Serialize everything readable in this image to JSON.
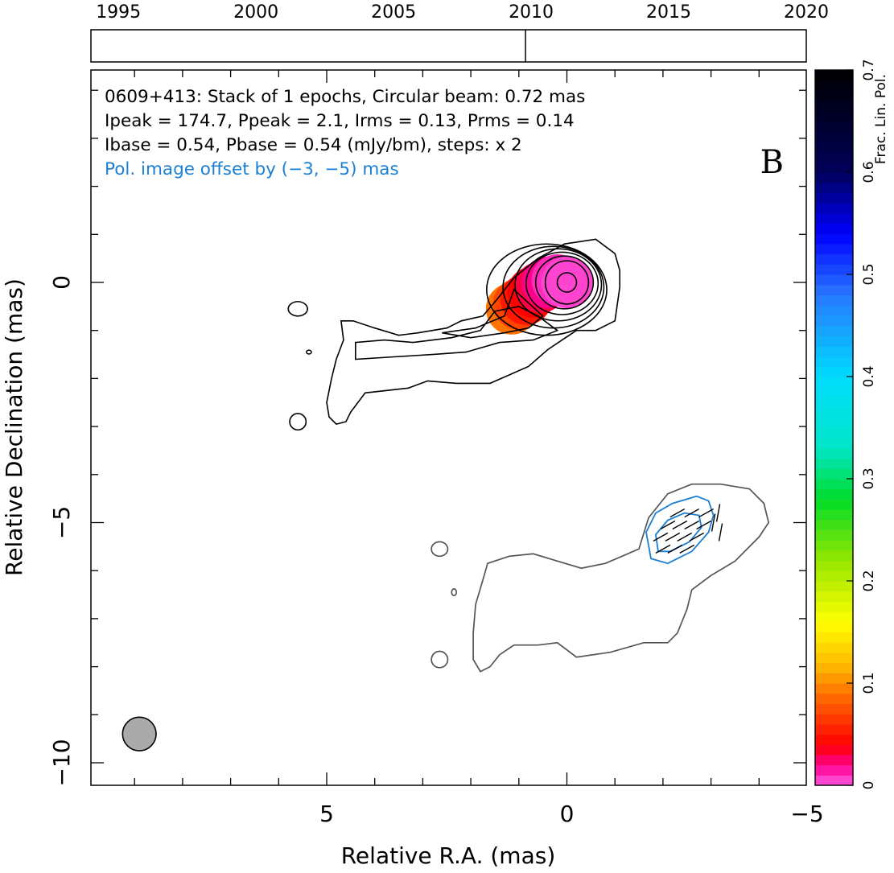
{
  "chart_data": {
    "type": "contour",
    "source": "0609+413",
    "panel_label": "B",
    "annotations": [
      "0609+413: Stack of 1 epochs, Circular beam: 0.72 mas",
      "Ipeak = 174.7, Ppeak = 2.1, Irms = 0.13, Prms = 0.14",
      "Ibase = 0.54, Pbase = 0.54 (mJy/bm), steps: x 2"
    ],
    "pol_offset_note": "Pol. image offset by (−3, −5) mas",
    "xlabel": "Relative R.A. (mas)",
    "ylabel": "Relative Declination (mas)",
    "xlim": [
      10,
      -5
    ],
    "ylim": [
      -10.5,
      4.4
    ],
    "x_ticks": [
      {
        "value": 5,
        "label": "5"
      },
      {
        "value": 0,
        "label": "0"
      },
      {
        "value": -5,
        "label": "−5"
      }
    ],
    "y_ticks": [
      {
        "value": 0,
        "label": "0"
      },
      {
        "value": -5,
        "label": "−5"
      },
      {
        "value": -10,
        "label": "−10"
      }
    ],
    "beam": {
      "ra": 8.9,
      "dec": -9.4,
      "diameter_mas": 0.72
    },
    "core_position": {
      "ra": 0,
      "dec": 0
    },
    "stokes_i_contours": {
      "color": "#000000",
      "outer": [
        [
          -1.1,
          -0.1
        ],
        [
          -1.0,
          -0.8
        ],
        [
          -0.6,
          -1.0
        ],
        [
          -0.2,
          -1.0
        ],
        [
          0.1,
          -1.2
        ],
        [
          0.4,
          -1.4
        ],
        [
          0.8,
          -1.75
        ],
        [
          1.6,
          -2.1
        ],
        [
          2.3,
          -2.1
        ],
        [
          2.9,
          -2.05
        ],
        [
          3.3,
          -2.2
        ],
        [
          4.2,
          -2.3
        ],
        [
          4.5,
          -2.7
        ],
        [
          4.6,
          -2.9
        ],
        [
          4.8,
          -2.95
        ],
        [
          4.95,
          -2.8
        ],
        [
          5.0,
          -2.5
        ],
        [
          4.9,
          -2.0
        ],
        [
          4.8,
          -1.6
        ],
        [
          4.65,
          -1.2
        ],
        [
          4.7,
          -0.8
        ],
        [
          4.45,
          -0.8
        ],
        [
          4.0,
          -0.95
        ],
        [
          3.5,
          -1.1
        ],
        [
          3.1,
          -1.05
        ],
        [
          2.5,
          -0.95
        ],
        [
          2.2,
          -0.8
        ],
        [
          1.75,
          -0.7
        ],
        [
          1.45,
          -0.35
        ],
        [
          1.1,
          0.1
        ],
        [
          0.6,
          0.5
        ],
        [
          0.05,
          0.8
        ],
        [
          -0.6,
          0.9
        ],
        [
          -1.0,
          0.6
        ],
        [
          -1.1,
          0.25
        ]
      ],
      "inner_levels": [
        {
          "rx": 0.45,
          "ry": 0.45,
          "cx": 0.0,
          "cy": 0.0
        },
        {
          "rx": 0.6,
          "ry": 0.55,
          "cx": 0.05,
          "cy": 0.0
        },
        {
          "rx": 0.75,
          "ry": 0.65,
          "cx": 0.1,
          "cy": -0.02
        },
        {
          "rx": 0.9,
          "ry": 0.75,
          "cx": 0.18,
          "cy": -0.05
        },
        {
          "rx": 1.05,
          "ry": 0.85,
          "cx": 0.28,
          "cy": -0.1
        },
        {
          "rx": 1.25,
          "ry": 0.95,
          "cx": 0.42,
          "cy": -0.15
        }
      ],
      "mid_level": [
        [
          1.5,
          -0.6
        ],
        [
          1.8,
          -1.0
        ],
        [
          2.4,
          -1.15
        ],
        [
          3.2,
          -1.25
        ],
        [
          3.8,
          -1.2
        ],
        [
          4.4,
          -1.25
        ],
        [
          4.4,
          -1.6
        ],
        [
          3.6,
          -1.55
        ],
        [
          2.8,
          -1.5
        ],
        [
          2.1,
          -1.45
        ],
        [
          1.4,
          -1.25
        ],
        [
          0.7,
          -1.2
        ],
        [
          0.2,
          -1.0
        ],
        [
          0.6,
          -0.7
        ],
        [
          1.0,
          -0.5
        ]
      ],
      "inner_jet": [
        [
          1.1,
          -0.15
        ],
        [
          1.3,
          -0.7
        ],
        [
          1.9,
          -0.95
        ],
        [
          2.6,
          -1.05
        ],
        [
          2.0,
          -1.15
        ],
        [
          1.3,
          -1.05
        ],
        [
          0.8,
          -0.95
        ],
        [
          0.5,
          -0.7
        ]
      ],
      "islands": [
        {
          "cx": 5.6,
          "cy": -0.55,
          "rx": 0.2,
          "ry": 0.15
        },
        {
          "cx": 5.37,
          "cy": -1.45,
          "rx": 0.05,
          "ry": 0.04
        },
        {
          "cx": 5.6,
          "cy": -2.9,
          "rx": 0.17,
          "ry": 0.17
        }
      ]
    },
    "fractional_pol_pixels": [
      {
        "ra": 1.15,
        "dec": -0.55,
        "value": 0.09
      },
      {
        "ra": 1.0,
        "dec": -0.45,
        "value": 0.07
      },
      {
        "ra": 0.85,
        "dec": -0.35,
        "value": 0.05
      },
      {
        "ra": 0.7,
        "dec": -0.2,
        "value": 0.04
      },
      {
        "ra": 0.55,
        "dec": -0.1,
        "value": 0.03
      },
      {
        "ra": 0.4,
        "dec": 0.0,
        "value": 0.02
      },
      {
        "ra": 0.2,
        "dec": 0.05,
        "value": 0.01
      },
      {
        "ra": 0.0,
        "dec": 0.0,
        "value": 0.005
      }
    ],
    "offset_stokes_i_contour": {
      "color": "#555555",
      "points": [
        [
          -1.5,
          -5.55
        ],
        [
          -1.7,
          -4.9
        ],
        [
          -2.1,
          -4.4
        ],
        [
          -2.6,
          -4.2
        ],
        [
          -3.2,
          -4.2
        ],
        [
          -3.8,
          -4.3
        ],
        [
          -4.1,
          -4.6
        ],
        [
          -4.2,
          -5.0
        ],
        [
          -4.0,
          -5.3
        ],
        [
          -3.5,
          -5.8
        ],
        [
          -3.0,
          -6.1
        ],
        [
          -2.6,
          -6.4
        ],
        [
          -2.5,
          -6.8
        ],
        [
          -2.3,
          -7.3
        ],
        [
          -2.1,
          -7.5
        ],
        [
          -1.6,
          -7.5
        ],
        [
          -0.9,
          -7.7
        ],
        [
          -0.2,
          -7.8
        ],
        [
          0.2,
          -7.5
        ],
        [
          0.6,
          -7.55
        ],
        [
          1.1,
          -7.55
        ],
        [
          1.4,
          -7.75
        ],
        [
          1.6,
          -8.0
        ],
        [
          1.8,
          -8.1
        ],
        [
          1.95,
          -7.85
        ],
        [
          1.95,
          -7.3
        ],
        [
          1.9,
          -6.7
        ],
        [
          1.75,
          -6.2
        ],
        [
          1.65,
          -5.85
        ],
        [
          1.2,
          -5.7
        ],
        [
          0.7,
          -5.65
        ],
        [
          0.2,
          -5.8
        ],
        [
          -0.3,
          -5.95
        ],
        [
          -0.8,
          -5.85
        ]
      ]
    },
    "offset_islands": [
      {
        "cx": 2.65,
        "cy": -5.55,
        "rx": 0.17,
        "ry": 0.15
      },
      {
        "cx": 2.35,
        "cy": -6.45,
        "rx": 0.05,
        "ry": 0.07
      },
      {
        "cx": 2.65,
        "cy": -7.85,
        "rx": 0.17,
        "ry": 0.17
      }
    ],
    "pol_contours": {
      "color": "#1a7fd4",
      "outer": [
        [
          -1.75,
          -5.75
        ],
        [
          -1.65,
          -5.2
        ],
        [
          -1.85,
          -4.8
        ],
        [
          -2.2,
          -4.6
        ],
        [
          -2.7,
          -4.45
        ],
        [
          -2.95,
          -4.55
        ],
        [
          -3.05,
          -4.85
        ],
        [
          -2.95,
          -5.2
        ],
        [
          -2.6,
          -5.6
        ],
        [
          -2.1,
          -5.85
        ]
      ],
      "inner": [
        [
          -1.9,
          -5.6
        ],
        [
          -1.85,
          -5.25
        ],
        [
          -2.1,
          -4.95
        ],
        [
          -2.45,
          -4.8
        ],
        [
          -2.75,
          -4.85
        ],
        [
          -2.8,
          -5.1
        ],
        [
          -2.55,
          -5.4
        ],
        [
          -2.15,
          -5.6
        ]
      ]
    },
    "evpa_ticks": [
      [
        -1.95,
        -5.3
      ],
      [
        -2.2,
        -5.3
      ],
      [
        -2.45,
        -5.3
      ],
      [
        -2.7,
        -5.3
      ],
      [
        -2.0,
        -5.55
      ],
      [
        -2.25,
        -5.55
      ],
      [
        -2.5,
        -5.55
      ],
      [
        -2.1,
        -5.05
      ],
      [
        -2.35,
        -5.05
      ],
      [
        -2.6,
        -5.05
      ],
      [
        -2.85,
        -5.05
      ],
      [
        -2.3,
        -4.8
      ],
      [
        -2.6,
        -4.8
      ],
      [
        -2.9,
        -4.8
      ],
      [
        -3.05,
        -5.0
      ],
      [
        -3.15,
        -4.8
      ],
      [
        -3.2,
        -5.2
      ]
    ],
    "time_axis": {
      "labels": [
        "1995",
        "2000",
        "2005",
        "2010",
        "2015",
        "2020"
      ],
      "range": [
        1994,
        2020
      ],
      "epochs": [
        2010
      ]
    },
    "colorbar": {
      "label": "Frac. Lin. Pol.",
      "range": [
        0,
        0.7
      ],
      "ticks": [
        "0",
        "0.1",
        "0.2",
        "0.3",
        "0.4",
        "0.5",
        "0.6",
        "0.7"
      ]
    },
    "grid": false
  }
}
